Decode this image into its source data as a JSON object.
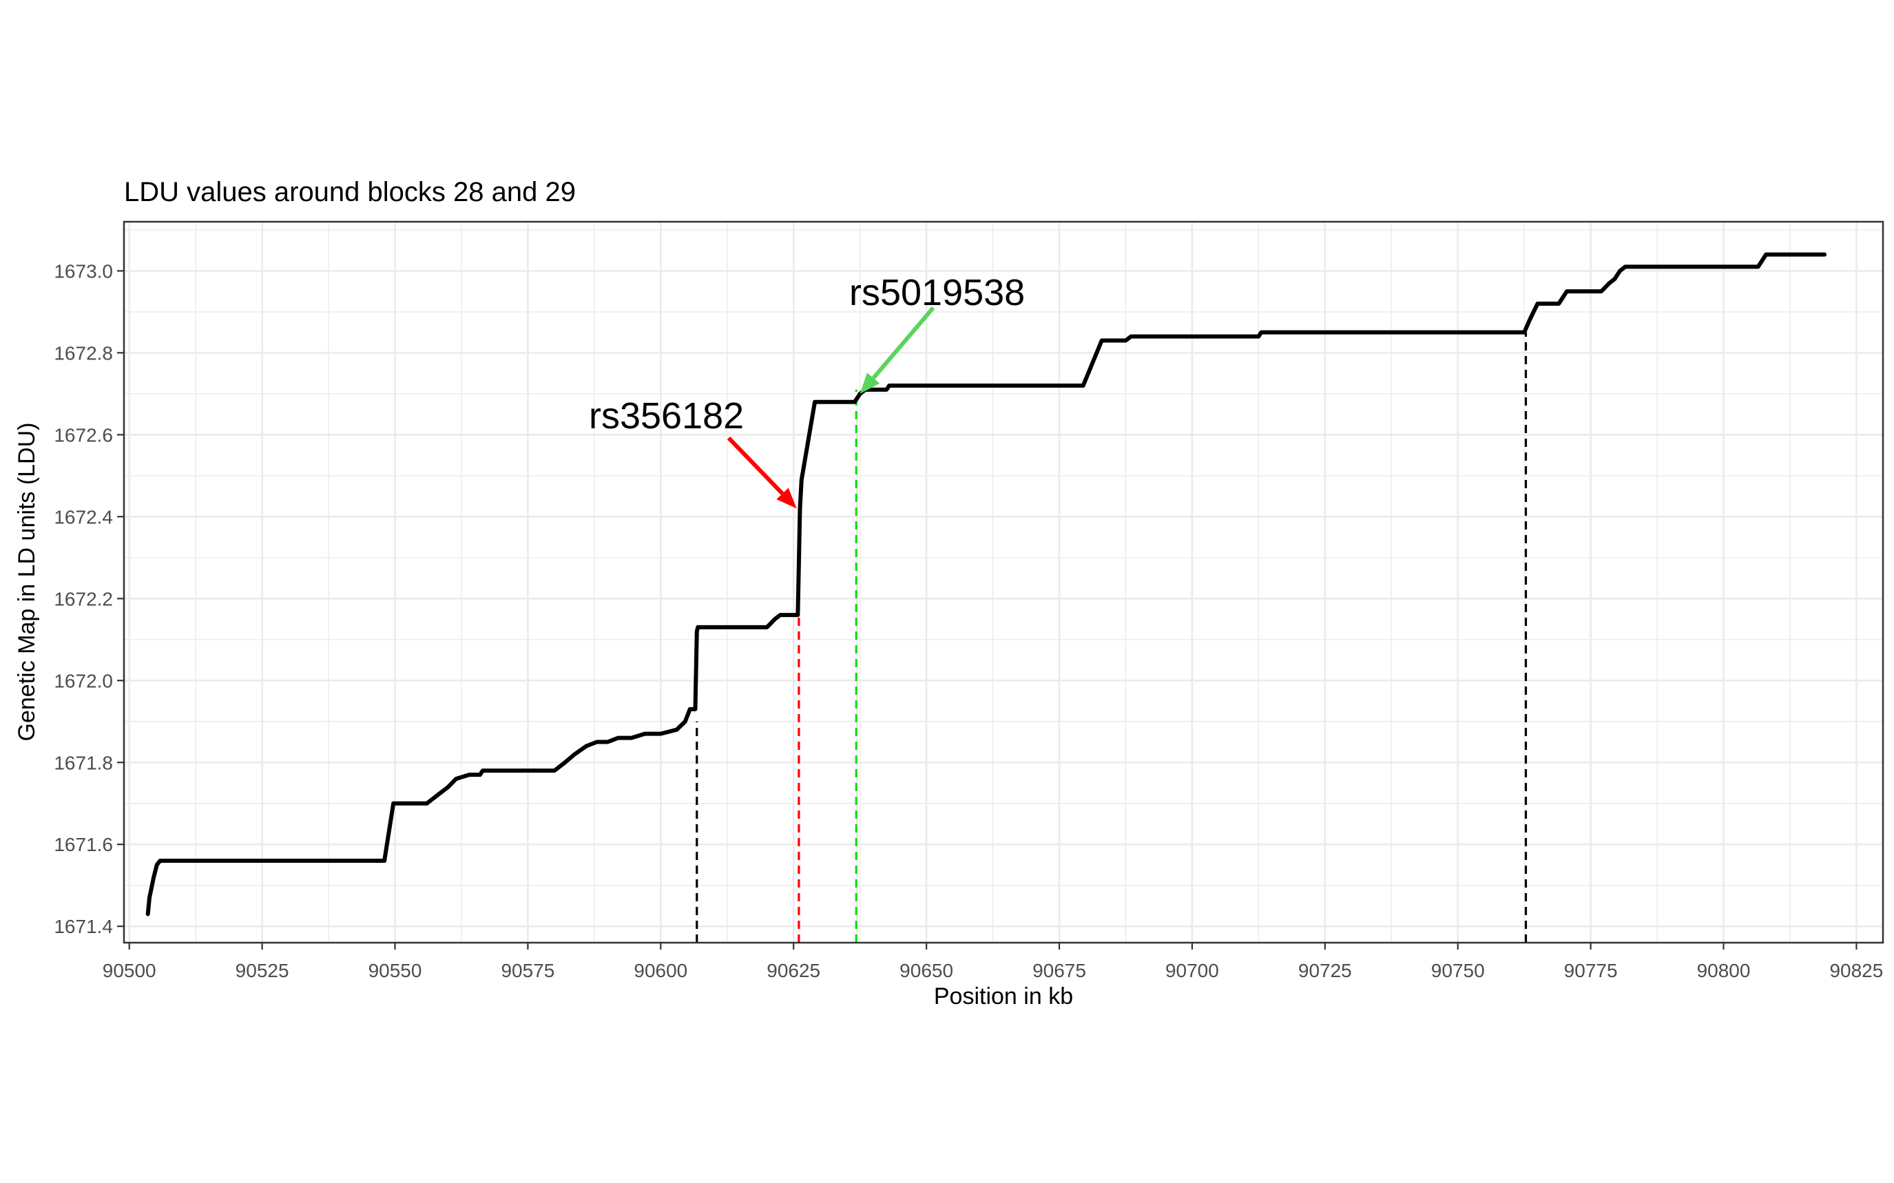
{
  "chart_data": {
    "type": "line",
    "title": "LDU values around blocks 28 and 29",
    "xlabel": "Position in kb",
    "ylabel": "Genetic Map in LD units (LDU)",
    "xlim": [
      90499,
      90830
    ],
    "ylim": [
      1671.36,
      1673.12
    ],
    "x_major_ticks": [
      90500,
      90525,
      90550,
      90575,
      90600,
      90625,
      90650,
      90675,
      90700,
      90725,
      90750,
      90775,
      90800,
      90825
    ],
    "y_major_ticks": [
      1671.4,
      1671.6,
      1671.8,
      1672.0,
      1672.2,
      1672.4,
      1672.6,
      1672.8,
      1673.0
    ],
    "y_tick_labels": [
      "1671.4",
      "1671.6",
      "1671.8",
      "1672.0",
      "1672.2",
      "1672.4",
      "1672.6",
      "1672.8",
      "1673.0"
    ],
    "grid": true,
    "legend": "none",
    "line_color": "#000000",
    "series": [
      {
        "x": [
          90503.5,
          90503.8,
          90504.6,
          90505.2,
          90505.8,
          90548.0,
          90549.7,
          90550.5,
          90556.0,
          90558.0,
          90560.0,
          90561.5,
          90564.0,
          90564.6,
          90566.0,
          90566.5,
          90580.0,
          90582.0,
          90583.8,
          90586.0,
          90588.0,
          90590.0,
          90592.0,
          90594.5,
          90597.0,
          90600.0,
          90603.0,
          90604.6,
          90605.5,
          90606.5,
          90606.8,
          90607.0,
          90620.0,
          90621.5,
          90622.5,
          90624.5,
          90625.8,
          90626.2,
          90626.5,
          90629.0,
          90629.5,
          90636.5,
          90637.5,
          90638.5,
          90642.5,
          90643.0,
          90679.5,
          90683.0,
          90687.5,
          90688.5,
          90712.5,
          90713.0,
          90762.5,
          90763.5,
          90765.0,
          90769.0,
          90770.5,
          90777.0,
          90778.5,
          90779.5,
          90780.5,
          90781.5,
          90806.5,
          90808.0,
          90819.0
        ],
        "y": [
          1671.43,
          1671.47,
          1671.52,
          1671.55,
          1671.56,
          1671.56,
          1671.7,
          1671.7,
          1671.7,
          1671.72,
          1671.74,
          1671.76,
          1671.77,
          1671.77,
          1671.77,
          1671.78,
          1671.78,
          1671.8,
          1671.82,
          1671.84,
          1671.85,
          1671.85,
          1671.86,
          1671.86,
          1671.87,
          1671.87,
          1671.88,
          1671.9,
          1671.93,
          1671.93,
          1672.12,
          1672.13,
          1672.13,
          1672.15,
          1672.16,
          1672.16,
          1672.16,
          1672.42,
          1672.49,
          1672.68,
          1672.68,
          1672.68,
          1672.7,
          1672.71,
          1672.71,
          1672.72,
          1672.72,
          1672.83,
          1672.83,
          1672.84,
          1672.84,
          1672.85,
          1672.85,
          1672.88,
          1672.92,
          1672.92,
          1672.95,
          1672.95,
          1672.97,
          1672.98,
          1673.0,
          1673.01,
          1673.01,
          1673.04,
          1673.04
        ]
      }
    ],
    "vlines": [
      {
        "x": 90606.8,
        "y_top": 1671.9,
        "color": "#000000"
      },
      {
        "x": 90626.0,
        "y_top": 1672.16,
        "color": "#ff0000"
      },
      {
        "x": 90636.8,
        "y_top": 1672.71,
        "color": "#00e000"
      },
      {
        "x": 90762.8,
        "y_top": 1672.85,
        "color": "#000000"
      }
    ],
    "annotations": [
      {
        "text": "rs356182",
        "arrow_color": "#ff0000",
        "target": {
          "x": 90625.6,
          "y": 1672.42
        }
      },
      {
        "text": "rs5019538",
        "arrow_color": "#5bd45b",
        "target": {
          "x": 90637.5,
          "y": 1672.7
        }
      }
    ]
  }
}
